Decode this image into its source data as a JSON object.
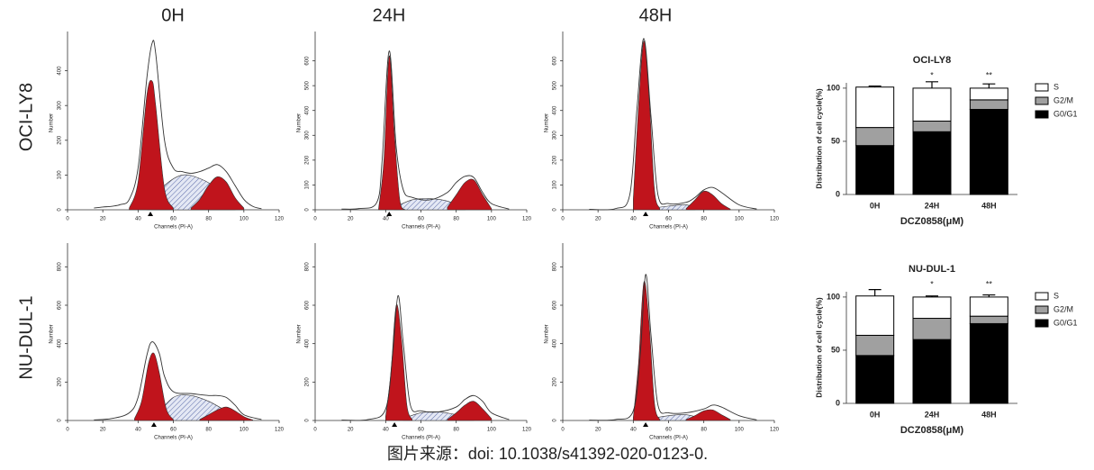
{
  "columns": [
    "0H",
    "24H",
    "48H"
  ],
  "rows": [
    "OCI-LY8",
    "NU-DUL-1"
  ],
  "caption": "图片来源：doi: 10.1038/s41392-020-0123-0.",
  "chart_data": [
    {
      "type": "area",
      "xlabel": "Channels (PI-A)",
      "ylabel": "Number",
      "xlim": [
        0,
        120
      ],
      "ylim": [
        0,
        500
      ],
      "xticks": [
        0,
        20,
        40,
        60,
        80,
        100,
        120
      ],
      "yticks": [
        0,
        100,
        200,
        300,
        400
      ],
      "marker_x": 47,
      "series": [
        {
          "style": "hatch",
          "color": "#9aa8d0",
          "x": [
            45,
            55,
            65,
            75,
            85,
            95
          ],
          "values": [
            10,
            70,
            100,
            90,
            60,
            5
          ]
        },
        {
          "style": "fill",
          "color": "#c0141c",
          "x": [
            35,
            40,
            45,
            48,
            50,
            55,
            60
          ],
          "values": [
            5,
            80,
            330,
            370,
            300,
            60,
            5
          ]
        },
        {
          "style": "fill",
          "color": "#c0141c",
          "x": [
            70,
            75,
            80,
            85,
            90,
            95,
            100
          ],
          "values": [
            5,
            30,
            70,
            95,
            80,
            35,
            5
          ]
        },
        {
          "style": "line",
          "color": "#333333",
          "x": [
            15,
            20,
            25,
            30,
            35,
            40,
            45,
            48,
            50,
            55,
            60,
            65,
            70,
            75,
            80,
            85,
            90,
            95,
            100,
            105,
            110
          ],
          "values": [
            5,
            8,
            10,
            15,
            30,
            120,
            380,
            480,
            450,
            200,
            120,
            110,
            105,
            110,
            120,
            130,
            110,
            70,
            30,
            10,
            3
          ]
        }
      ]
    },
    {
      "type": "area",
      "xlabel": "Channels (PI-A)",
      "ylabel": "Number",
      "xlim": [
        0,
        120
      ],
      "ylim": [
        0,
        700
      ],
      "xticks": [
        0,
        20,
        40,
        60,
        80,
        100,
        120
      ],
      "yticks": [
        0,
        100,
        200,
        300,
        400,
        500,
        600
      ],
      "marker_x": 42,
      "series": [
        {
          "style": "hatch",
          "color": "#9aa8d0",
          "x": [
            45,
            55,
            65,
            75,
            85
          ],
          "values": [
            10,
            40,
            45,
            35,
            5
          ]
        },
        {
          "style": "fill",
          "color": "#c0141c",
          "x": [
            36,
            39,
            42,
            45,
            48,
            51
          ],
          "values": [
            5,
            200,
            620,
            300,
            40,
            0
          ]
        },
        {
          "style": "fill",
          "color": "#c0141c",
          "x": [
            75,
            80,
            85,
            90,
            95,
            100
          ],
          "values": [
            10,
            60,
            110,
            120,
            60,
            5
          ]
        },
        {
          "style": "line",
          "color": "#333333",
          "x": [
            15,
            25,
            35,
            38,
            42,
            46,
            50,
            55,
            65,
            75,
            80,
            85,
            90,
            95,
            100,
            110
          ],
          "values": [
            3,
            5,
            30,
            200,
            640,
            250,
            80,
            50,
            40,
            70,
            110,
            135,
            130,
            70,
            25,
            3
          ]
        }
      ]
    },
    {
      "type": "area",
      "xlabel": "Channels (PI-A)",
      "ylabel": "Number",
      "xlim": [
        0,
        120
      ],
      "ylim": [
        0,
        700
      ],
      "xticks": [
        0,
        20,
        40,
        60,
        80,
        100,
        120
      ],
      "yticks": [
        0,
        100,
        200,
        300,
        400,
        500,
        600
      ],
      "marker_x": 47,
      "series": [
        {
          "style": "hatch",
          "color": "#9aa8d0",
          "x": [
            50,
            60,
            70,
            75
          ],
          "values": [
            5,
            15,
            20,
            5
          ]
        },
        {
          "style": "fill",
          "color": "#c0141c",
          "x": [
            40,
            43,
            46,
            49,
            52,
            55
          ],
          "values": [
            40,
            420,
            680,
            450,
            80,
            5
          ]
        },
        {
          "style": "fill",
          "color": "#c0141c",
          "x": [
            70,
            75,
            80,
            85,
            90,
            95
          ],
          "values": [
            5,
            40,
            75,
            60,
            25,
            3
          ]
        },
        {
          "style": "line",
          "color": "#333333",
          "x": [
            15,
            30,
            38,
            42,
            46,
            50,
            54,
            60,
            70,
            75,
            80,
            85,
            90,
            100,
            110
          ],
          "values": [
            2,
            5,
            60,
            400,
            690,
            380,
            60,
            25,
            30,
            50,
            80,
            90,
            70,
            20,
            3
          ]
        }
      ]
    },
    {
      "type": "area",
      "xlabel": "Channels (PI-A)",
      "ylabel": "Number",
      "xlim": [
        0,
        120
      ],
      "ylim": [
        0,
        900
      ],
      "xticks": [
        0,
        20,
        40,
        60,
        80,
        100,
        120
      ],
      "yticks": [
        0,
        200,
        400,
        600,
        800
      ],
      "marker_x": 49,
      "series": [
        {
          "style": "hatch",
          "color": "#9aa8d0",
          "x": [
            50,
            60,
            70,
            80,
            90,
            100
          ],
          "values": [
            20,
            120,
            130,
            100,
            50,
            5
          ]
        },
        {
          "style": "fill",
          "color": "#c0141c",
          "x": [
            38,
            42,
            46,
            49,
            52,
            56,
            60
          ],
          "values": [
            10,
            100,
            300,
            350,
            250,
            60,
            5
          ]
        },
        {
          "style": "fill",
          "color": "#c0141c",
          "x": [
            75,
            80,
            85,
            90,
            95,
            100,
            105
          ],
          "values": [
            5,
            30,
            55,
            70,
            50,
            20,
            3
          ]
        },
        {
          "style": "line",
          "color": "#333333",
          "x": [
            15,
            25,
            35,
            40,
            45,
            48,
            52,
            55,
            60,
            70,
            80,
            85,
            90,
            95,
            100,
            110
          ],
          "values": [
            3,
            10,
            40,
            120,
            340,
            410,
            350,
            230,
            150,
            140,
            130,
            130,
            120,
            80,
            30,
            5
          ]
        }
      ]
    },
    {
      "type": "area",
      "xlabel": "Channels (PI-A)",
      "ylabel": "Number",
      "xlim": [
        0,
        120
      ],
      "ylim": [
        0,
        900
      ],
      "xticks": [
        0,
        20,
        40,
        60,
        80,
        100,
        120
      ],
      "yticks": [
        0,
        200,
        400,
        600,
        800
      ],
      "marker_x": 45,
      "series": [
        {
          "style": "hatch",
          "color": "#9aa8d0",
          "x": [
            50,
            60,
            70,
            80,
            90
          ],
          "values": [
            10,
            40,
            45,
            30,
            5
          ]
        },
        {
          "style": "fill",
          "color": "#c0141c",
          "x": [
            40,
            43,
            46,
            49,
            52,
            55
          ],
          "values": [
            20,
            250,
            600,
            420,
            80,
            5
          ]
        },
        {
          "style": "fill",
          "color": "#c0141c",
          "x": [
            75,
            80,
            85,
            90,
            95,
            100
          ],
          "values": [
            5,
            40,
            80,
            100,
            60,
            10
          ]
        },
        {
          "style": "line",
          "color": "#333333",
          "x": [
            15,
            30,
            40,
            44,
            47,
            50,
            54,
            60,
            70,
            80,
            85,
            90,
            95,
            100,
            110
          ],
          "values": [
            2,
            5,
            60,
            350,
            650,
            400,
            80,
            50,
            45,
            70,
            110,
            130,
            100,
            40,
            5
          ]
        }
      ]
    },
    {
      "type": "area",
      "xlabel": "Channels (PI-A)",
      "ylabel": "Number",
      "xlim": [
        0,
        120
      ],
      "ylim": [
        0,
        900
      ],
      "xticks": [
        0,
        20,
        40,
        60,
        80,
        100,
        120
      ],
      "yticks": [
        0,
        200,
        400,
        600,
        800
      ],
      "marker_x": 47,
      "series": [
        {
          "style": "hatch",
          "color": "#9aa8d0",
          "x": [
            50,
            60,
            70,
            80
          ],
          "values": [
            10,
            25,
            30,
            5
          ]
        },
        {
          "style": "fill",
          "color": "#c0141c",
          "x": [
            40,
            43,
            46,
            49,
            52,
            55
          ],
          "values": [
            15,
            300,
            720,
            500,
            90,
            5
          ]
        },
        {
          "style": "fill",
          "color": "#c0141c",
          "x": [
            70,
            75,
            80,
            85,
            90,
            95
          ],
          "values": [
            5,
            25,
            50,
            55,
            30,
            5
          ]
        },
        {
          "style": "line",
          "color": "#333333",
          "x": [
            15,
            30,
            40,
            44,
            47,
            50,
            54,
            60,
            70,
            80,
            85,
            90,
            100,
            110
          ],
          "values": [
            2,
            5,
            50,
            350,
            760,
            450,
            80,
            40,
            40,
            60,
            80,
            70,
            25,
            3
          ]
        }
      ]
    },
    {
      "type": "bar",
      "stacked": true,
      "title": "OCI-LY8",
      "xlabel": "DCZ0858(μM)",
      "ylabel": "Distribution of cell cycle(%)",
      "categories": [
        "0H",
        "24H",
        "48H"
      ],
      "ylim": [
        0,
        105
      ],
      "yticks": [
        0,
        50,
        100
      ],
      "legend": "right",
      "significance": [
        null,
        "*",
        "**"
      ],
      "series": [
        {
          "name": "G0/G1",
          "color": "#000000",
          "values": [
            46,
            59,
            80
          ],
          "errors": [
            2,
            1,
            3
          ]
        },
        {
          "name": "G2/M",
          "color": "#a0a0a0",
          "values": [
            17,
            10,
            9
          ],
          "errors": [
            2,
            5,
            3
          ]
        },
        {
          "name": "S",
          "color": "#ffffff",
          "values": [
            38,
            31,
            11
          ],
          "errors": [
            1,
            6,
            4
          ]
        }
      ]
    },
    {
      "type": "bar",
      "stacked": true,
      "title": "NU-DUL-1",
      "xlabel": "DCZ0858(μM)",
      "ylabel": "Distribution of cell cycle(%)",
      "categories": [
        "0H",
        "24H",
        "48H"
      ],
      "ylim": [
        0,
        105
      ],
      "yticks": [
        0,
        50,
        100
      ],
      "legend": "right",
      "significance": [
        null,
        "*",
        "**"
      ],
      "series": [
        {
          "name": "G0/G1",
          "color": "#000000",
          "values": [
            45,
            60,
            75
          ],
          "errors": [
            3,
            1,
            1
          ]
        },
        {
          "name": "G2/M",
          "color": "#a0a0a0",
          "values": [
            19,
            20,
            7
          ],
          "errors": [
            3,
            1,
            2
          ]
        },
        {
          "name": "S",
          "color": "#ffffff",
          "values": [
            37,
            20,
            18
          ],
          "errors": [
            6,
            1,
            2
          ]
        }
      ]
    }
  ]
}
